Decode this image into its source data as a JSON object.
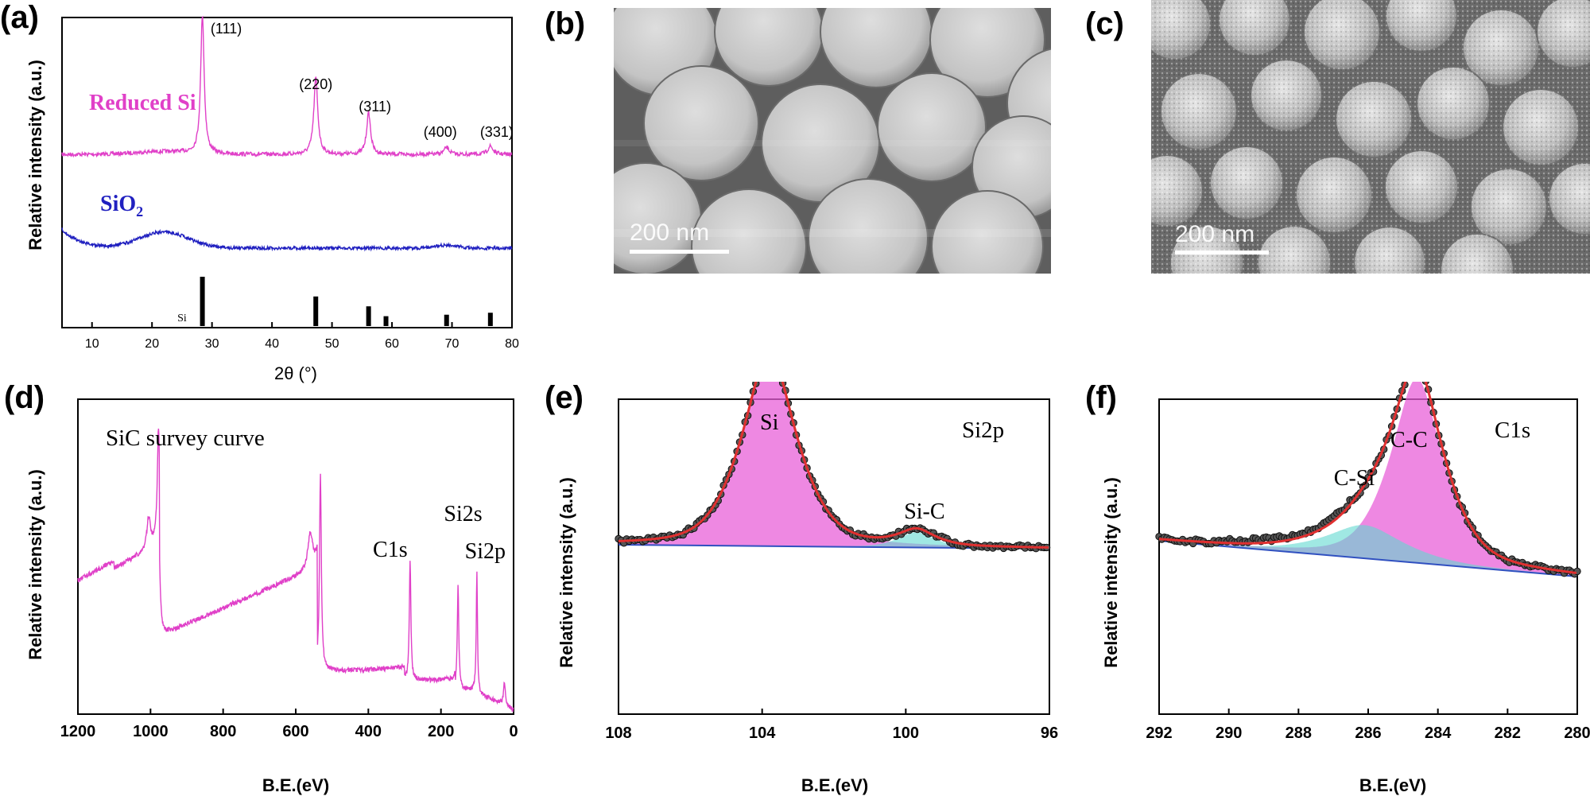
{
  "panel_letters": {
    "a": "(a)",
    "b": "(b)",
    "c": "(c)",
    "d": "(d)",
    "e": "(e)",
    "f": "(f)"
  },
  "colors": {
    "magenta": "#e040c8",
    "blue": "#2020c0",
    "red": "#e03030",
    "fill_magenta": "#e860d8",
    "fill_cyan": "#60d8d0",
    "blue_base": "#3050c0",
    "black": "#000000"
  },
  "sem": {
    "b": {
      "scale_label": "200 nm"
    },
    "c": {
      "scale_label": "200 nm"
    }
  },
  "chart_data": [
    {
      "id": "a",
      "type": "line",
      "ylabel": "Relative intensity (a.u.)",
      "xlabel": "2θ (°)",
      "xlim": [
        5,
        80
      ],
      "xticks": [
        10,
        20,
        30,
        40,
        50,
        60,
        70,
        80
      ],
      "series": [
        {
          "name": "Reduced Si",
          "color": "#e040c8",
          "baseline": 0.28,
          "peaks": [
            [
              28.4,
              1.0,
              0.35
            ],
            [
              47.3,
              0.55,
              0.4
            ],
            [
              56.1,
              0.3,
              0.4
            ],
            [
              69.1,
              0.05,
              0.5
            ],
            [
              76.4,
              0.06,
              0.5
            ]
          ]
        },
        {
          "name": "SiO2",
          "color": "#2020c0",
          "baseline": 0.0,
          "peaks": [
            [
              22,
              0.12,
              4.0
            ],
            [
              69,
              0.02,
              2.0
            ]
          ]
        }
      ],
      "peak_labels": [
        {
          "x": 28.4,
          "label": "(111)"
        },
        {
          "x": 47.3,
          "label": "(220)"
        },
        {
          "x": 56.1,
          "label": "(311)"
        },
        {
          "x": 69.1,
          "label": "(400)"
        },
        {
          "x": 76.4,
          "label": "(331)"
        }
      ],
      "reference": {
        "label": "Si",
        "sticks": [
          [
            28.4,
            1.0
          ],
          [
            47.3,
            0.6
          ],
          [
            56.1,
            0.4
          ],
          [
            59.0,
            0.2
          ],
          [
            69.1,
            0.23
          ],
          [
            76.4,
            0.27
          ]
        ]
      },
      "legend": {
        "reduced": "Reduced Si",
        "sio2_main": "SiO",
        "sio2_sub": "2"
      }
    },
    {
      "id": "d",
      "type": "line",
      "title": "SiC survey curve",
      "ylabel": "Relative intensity (a.u.)",
      "xlabel": "B.E.(eV)",
      "xlim": [
        1200,
        0
      ],
      "xticks": [
        1200,
        1000,
        800,
        600,
        400,
        200,
        0
      ],
      "annotations": [
        {
          "x": 285,
          "label": "C1s"
        },
        {
          "x": 150,
          "label": "Si2s"
        },
        {
          "x": 100,
          "label": "Si2p"
        }
      ],
      "color": "#e040c8"
    },
    {
      "id": "e",
      "type": "line",
      "title": "Si2p",
      "ylabel": "Relative intensity (a.u.)",
      "xlabel": "B.E.(eV)",
      "xlim": [
        108,
        96
      ],
      "xticks": [
        108,
        104,
        100,
        96
      ],
      "components": [
        {
          "name": "Si",
          "center": 103.8,
          "amp": 1.0,
          "width": 0.75
        },
        {
          "name": "Si-C",
          "center": 99.7,
          "amp": 0.08,
          "width": 0.5
        }
      ],
      "annotations": [
        {
          "x": 103.8,
          "label": "Si"
        },
        {
          "x": 99.7,
          "label": "Si-C"
        }
      ]
    },
    {
      "id": "f",
      "type": "line",
      "title": "C1s",
      "ylabel": "Relative intensity (a.u.)",
      "xlabel": "B.E.(eV)",
      "xlim": [
        292,
        280
      ],
      "xticks": [
        292,
        290,
        288,
        286,
        284,
        282,
        280
      ],
      "components": [
        {
          "name": "C-C",
          "center": 284.6,
          "amp": 1.0,
          "width": 0.75
        },
        {
          "name": "C-Si",
          "center": 286.1,
          "amp": 0.18,
          "width": 1.1
        }
      ],
      "annotations": [
        {
          "x": 284.6,
          "label": "C-C"
        },
        {
          "x": 286.4,
          "label": "C-Si"
        }
      ]
    }
  ]
}
